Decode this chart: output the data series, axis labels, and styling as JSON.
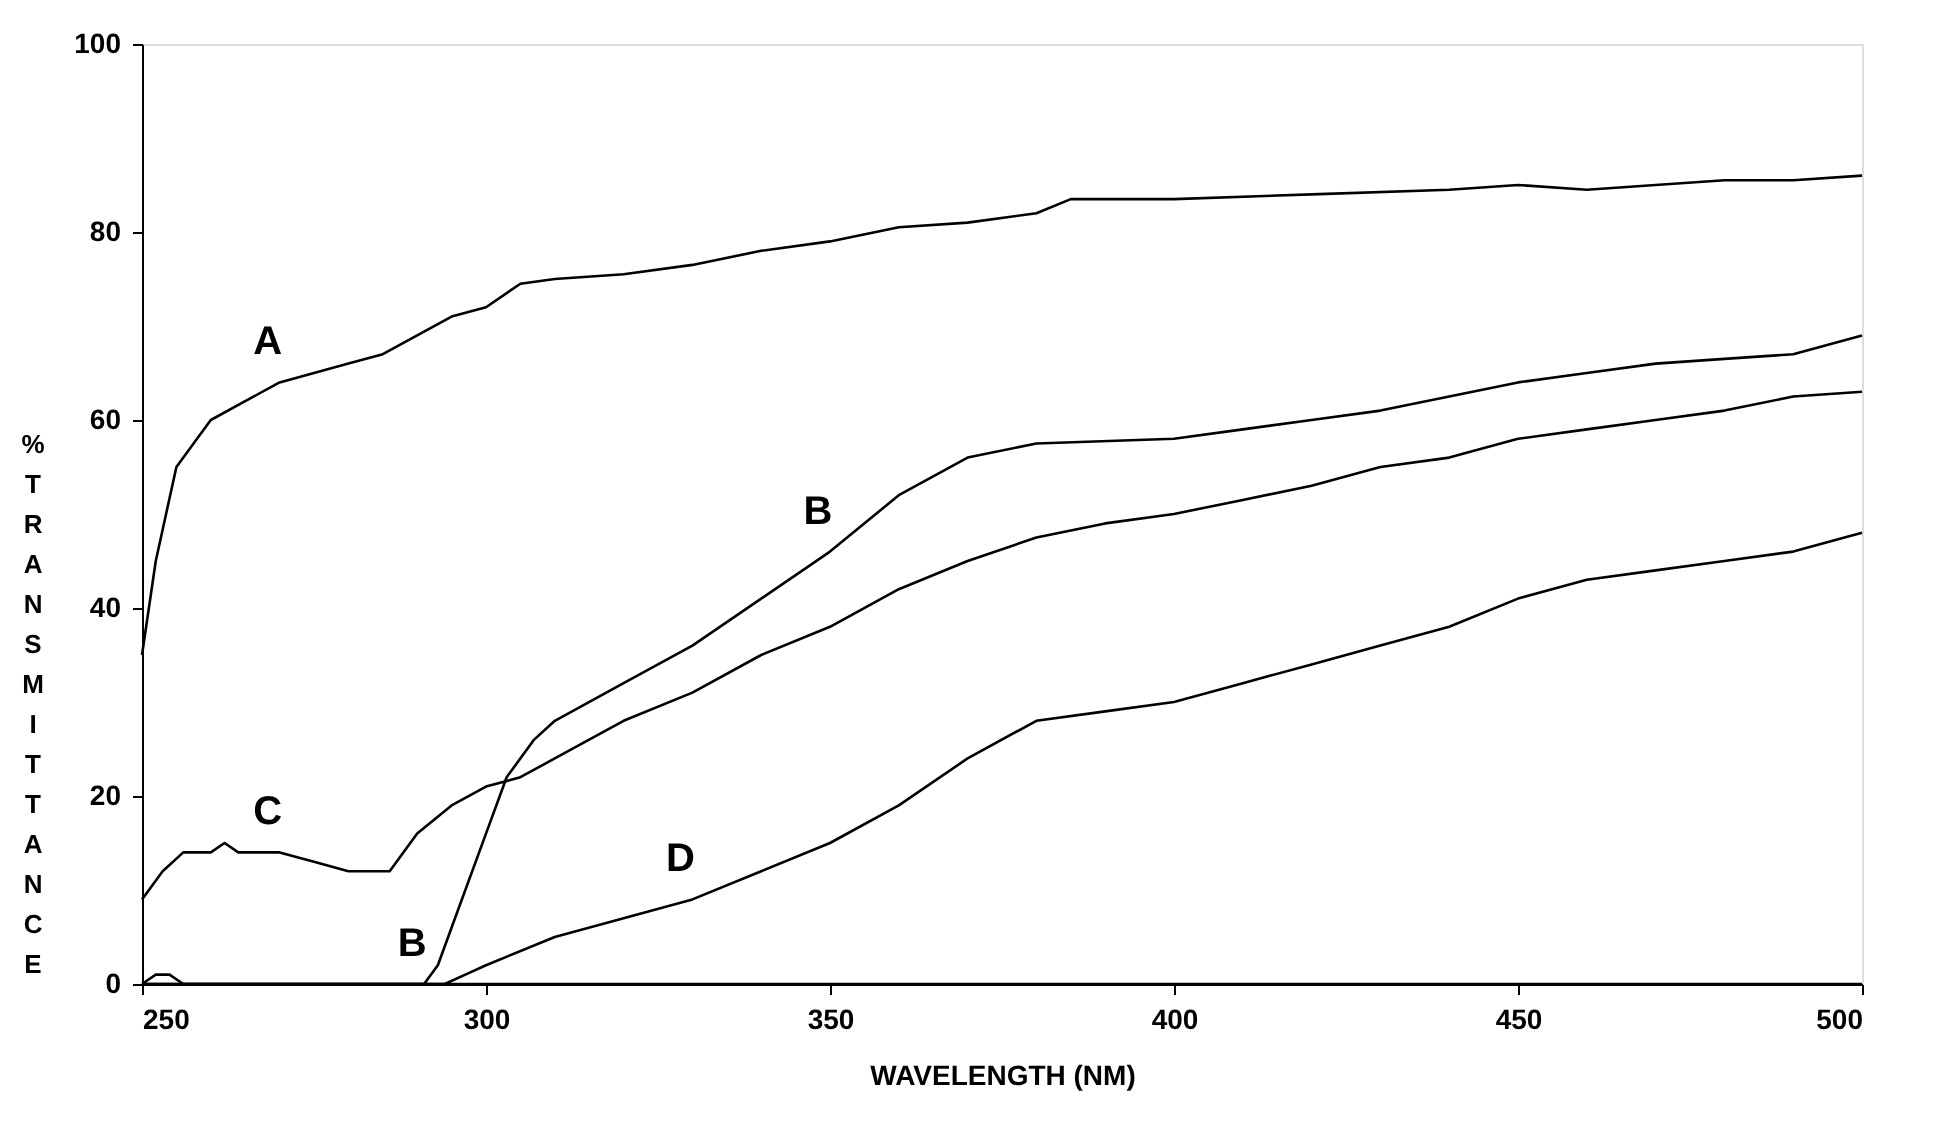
{
  "chart_data": {
    "type": "line",
    "xlabel": "WAVELENGTH (NM)",
    "ylabel": "% TRANSMITTANCE",
    "xlim": [
      250,
      500
    ],
    "ylim": [
      0,
      100
    ],
    "xticks": [
      250,
      300,
      350,
      400,
      450,
      500
    ],
    "yticks": [
      0,
      20,
      40,
      60,
      80,
      100
    ],
    "grid": false,
    "legend": false,
    "marker": "none",
    "line_style": "solid",
    "series": [
      {
        "color": "#000000",
        "x": [
          250,
          252,
          255,
          258,
          260,
          265,
          270,
          275,
          280,
          285,
          290,
          295,
          300,
          305,
          310,
          320,
          330,
          340,
          350,
          360,
          370,
          380,
          385,
          400,
          420,
          440,
          450,
          460,
          470,
          480,
          490,
          500
        ],
        "values": [
          35,
          45,
          55,
          58,
          60,
          62,
          64,
          65,
          66,
          67,
          69,
          71,
          72,
          74.5,
          75,
          75.5,
          76.5,
          78,
          79,
          80.5,
          81,
          82,
          83.5,
          83.5,
          84,
          84.5,
          85,
          84.5,
          85,
          85.5,
          85.5,
          86
        ]
      },
      {
        "color": "#000000",
        "x": [
          250,
          291,
          293,
          296,
          300,
          303,
          307,
          310,
          320,
          330,
          340,
          350,
          360,
          370,
          380,
          400,
          410,
          420,
          430,
          440,
          450,
          460,
          470,
          480,
          490,
          500
        ],
        "values": [
          0,
          0,
          2,
          8,
          16,
          22,
          26,
          28,
          32,
          36,
          41,
          46,
          52,
          56,
          57.5,
          58,
          59,
          60,
          61,
          62.5,
          64,
          65,
          66,
          66.5,
          67,
          69
        ]
      },
      {
        "color": "#000000",
        "x": [
          250,
          253,
          256,
          260,
          262,
          264,
          270,
          275,
          280,
          286,
          290,
          295,
          300,
          305,
          310,
          320,
          330,
          340,
          350,
          360,
          370,
          380,
          390,
          400,
          410,
          420,
          430,
          440,
          450,
          460,
          470,
          480,
          490,
          500
        ],
        "values": [
          9,
          12,
          14,
          14,
          15,
          14,
          14,
          13,
          12,
          12,
          16,
          19,
          21,
          22,
          24,
          28,
          31,
          35,
          38,
          42,
          45,
          47.5,
          49,
          50,
          51.5,
          53,
          55,
          56,
          58,
          59,
          60,
          61,
          62.5,
          63
        ]
      },
      {
        "color": "#000000",
        "x": [
          250,
          294,
          297,
          300,
          310,
          320,
          330,
          340,
          350,
          360,
          370,
          380,
          390,
          400,
          410,
          420,
          430,
          440,
          450,
          460,
          470,
          480,
          490,
          500
        ],
        "values": [
          0,
          0,
          1,
          2,
          5,
          7,
          9,
          12,
          15,
          19,
          24,
          28,
          29,
          30,
          32,
          34,
          36,
          38,
          41,
          43,
          44,
          45,
          46,
          48
        ]
      },
      {
        "color": "#000000",
        "x": [
          250,
          252,
          254,
          256,
          500
        ],
        "values": [
          0,
          1,
          1,
          0,
          0
        ]
      }
    ],
    "annotations": [
      {
        "text": "A",
        "x": 270,
        "y": 64
      },
      {
        "text": "B",
        "x": 350,
        "y": 46
      },
      {
        "text": "C",
        "x": 270,
        "y": 14
      },
      {
        "text": "B",
        "x": 291,
        "y": 0
      },
      {
        "text": "D",
        "x": 330,
        "y": 9
      }
    ]
  }
}
